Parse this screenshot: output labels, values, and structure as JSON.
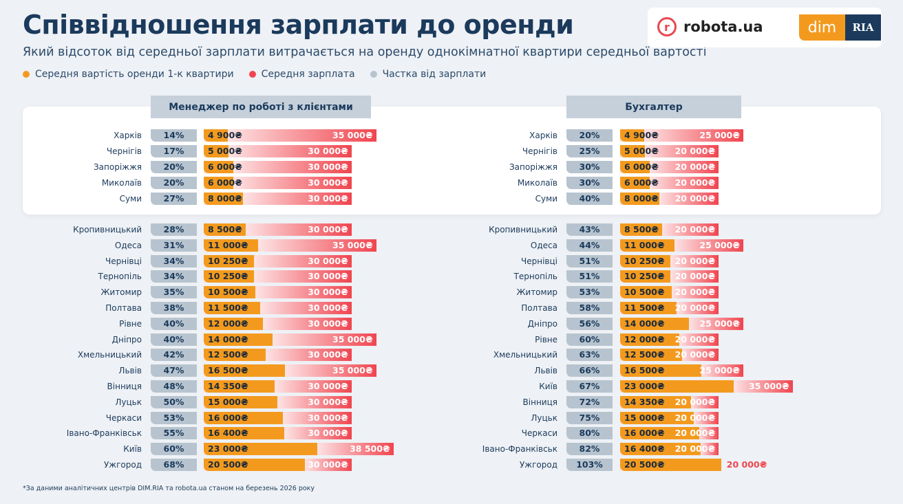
{
  "header": {
    "title": "Співвідношення зарплати до оренди",
    "subtitle": "Який відсоток від середньої зарплати витрачається на оренду однокімнатної квартири середньої вартості"
  },
  "logos": {
    "robota": "robota.ua",
    "dim": "dim",
    "ria": "RIA"
  },
  "legend": [
    {
      "label": "Середня вартість оренди 1-к квартири",
      "color": "#f39a1e"
    },
    {
      "label": "Середня зарплата",
      "color": "#f0454f"
    },
    {
      "label": "Частка від зарплати",
      "color": "#b7c4cf"
    }
  ],
  "footnote": "*За даними аналітичних центрів DIM.RIA та robota.ua станом на березень 2026 року",
  "currency": "₴",
  "chart_data": [
    {
      "type": "bar",
      "title": "Менеджер по роботі з клієнтами",
      "highlighted_rows": 5,
      "rows": [
        {
          "city": "Харків",
          "pct": 14,
          "rent": 4900,
          "salary": 35000
        },
        {
          "city": "Чернігів",
          "pct": 17,
          "rent": 5000,
          "salary": 30000
        },
        {
          "city": "Запоріжжя",
          "pct": 20,
          "rent": 6000,
          "salary": 30000
        },
        {
          "city": "Миколаїв",
          "pct": 20,
          "rent": 6000,
          "salary": 30000
        },
        {
          "city": "Суми",
          "pct": 27,
          "rent": 8000,
          "salary": 30000
        },
        {
          "city": "Кропивницький",
          "pct": 28,
          "rent": 8500,
          "salary": 30000
        },
        {
          "city": "Одеса",
          "pct": 31,
          "rent": 11000,
          "salary": 35000
        },
        {
          "city": "Чернівці",
          "pct": 34,
          "rent": 10250,
          "salary": 30000
        },
        {
          "city": "Тернопіль",
          "pct": 34,
          "rent": 10250,
          "salary": 30000
        },
        {
          "city": "Житомир",
          "pct": 35,
          "rent": 10500,
          "salary": 30000
        },
        {
          "city": "Полтава",
          "pct": 38,
          "rent": 11500,
          "salary": 30000
        },
        {
          "city": "Рівне",
          "pct": 40,
          "rent": 12000,
          "salary": 30000
        },
        {
          "city": "Дніпро",
          "pct": 40,
          "rent": 14000,
          "salary": 35000
        },
        {
          "city": "Хмельницький",
          "pct": 42,
          "rent": 12500,
          "salary": 30000
        },
        {
          "city": "Львів",
          "pct": 47,
          "rent": 16500,
          "salary": 35000
        },
        {
          "city": "Вінниця",
          "pct": 48,
          "rent": 14350,
          "salary": 30000
        },
        {
          "city": "Луцьк",
          "pct": 50,
          "rent": 15000,
          "salary": 30000
        },
        {
          "city": "Черкаси",
          "pct": 53,
          "rent": 16000,
          "salary": 30000
        },
        {
          "city": "Івано-Франківськ",
          "pct": 55,
          "rent": 16400,
          "salary": 30000
        },
        {
          "city": "Київ",
          "pct": 60,
          "rent": 23000,
          "salary": 38500
        },
        {
          "city": "Ужгород",
          "pct": 68,
          "rent": 20500,
          "salary": 30000
        }
      ]
    },
    {
      "type": "bar",
      "title": "Бухгалтер",
      "highlighted_rows": 5,
      "rows": [
        {
          "city": "Харків",
          "pct": 20,
          "rent": 4900,
          "salary": 25000
        },
        {
          "city": "Чернігів",
          "pct": 25,
          "rent": 5000,
          "salary": 20000
        },
        {
          "city": "Запоріжжя",
          "pct": 30,
          "rent": 6000,
          "salary": 20000
        },
        {
          "city": "Миколаїв",
          "pct": 30,
          "rent": 6000,
          "salary": 20000
        },
        {
          "city": "Суми",
          "pct": 40,
          "rent": 8000,
          "salary": 20000
        },
        {
          "city": "Кропивницький",
          "pct": 43,
          "rent": 8500,
          "salary": 20000
        },
        {
          "city": "Одеса",
          "pct": 44,
          "rent": 11000,
          "salary": 25000
        },
        {
          "city": "Чернівці",
          "pct": 51,
          "rent": 10250,
          "salary": 20000
        },
        {
          "city": "Тернопіль",
          "pct": 51,
          "rent": 10250,
          "salary": 20000
        },
        {
          "city": "Житомир",
          "pct": 53,
          "rent": 10500,
          "salary": 20000
        },
        {
          "city": "Полтава",
          "pct": 58,
          "rent": 11500,
          "salary": 20000
        },
        {
          "city": "Дніпро",
          "pct": 56,
          "rent": 14000,
          "salary": 25000
        },
        {
          "city": "Рівне",
          "pct": 60,
          "rent": 12000,
          "salary": 20000
        },
        {
          "city": "Хмельницький",
          "pct": 63,
          "rent": 12500,
          "salary": 20000
        },
        {
          "city": "Львів",
          "pct": 66,
          "rent": 16500,
          "salary": 25000
        },
        {
          "city": "Київ",
          "pct": 67,
          "rent": 23000,
          "salary": 35000
        },
        {
          "city": "Вінниця",
          "pct": 72,
          "rent": 14350,
          "salary": 20000
        },
        {
          "city": "Луцьк",
          "pct": 75,
          "rent": 15000,
          "salary": 20000
        },
        {
          "city": "Черкаси",
          "pct": 80,
          "rent": 16000,
          "salary": 20000
        },
        {
          "city": "Івано-Франківськ",
          "pct": 82,
          "rent": 16400,
          "salary": 20000
        },
        {
          "city": "Ужгород",
          "pct": 103,
          "rent": 20500,
          "salary": 20000
        }
      ]
    }
  ]
}
